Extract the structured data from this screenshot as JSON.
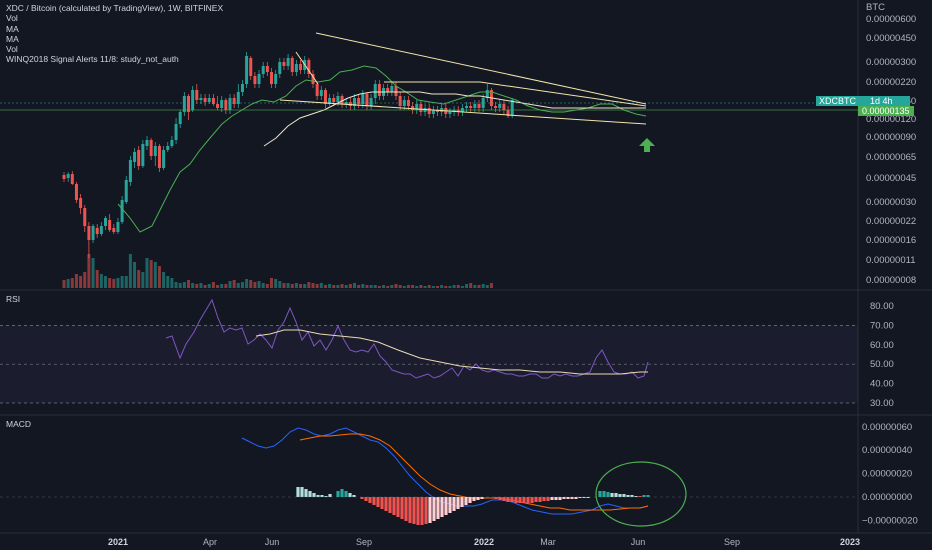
{
  "legend": {
    "title": "XDC / Bitcoin (calculated by TradingView), 1W, BITFINEX",
    "lines": [
      "Vol",
      "MA",
      "MA",
      "Vol",
      "WINQ2018 Signal Alerts 11/8: study_not_auth"
    ]
  },
  "price_axis": {
    "currency": "BTC",
    "ticks": [
      "0.00000600",
      "0.00000450",
      "0.00000300",
      "0.00000220",
      "0.00000160",
      "0.00000120",
      "0.00000090",
      "0.00000065",
      "0.00000045",
      "0.00000030",
      "0.00000022",
      "0.00000016",
      "0.00000011",
      "0.00000008"
    ]
  },
  "price_tags": {
    "symbol": "XDCBTC",
    "countdown": "1d 4h",
    "last": "0.00000135"
  },
  "rsi": {
    "title": "RSI",
    "ticks": [
      "80.00",
      "70.00",
      "60.00",
      "50.00",
      "40.00",
      "30.00"
    ],
    "band_upper": 70,
    "band_lower": 30,
    "mid": 50
  },
  "macd": {
    "title": "MACD",
    "ticks": [
      "0.00000060",
      "0.00000040",
      "0.00000020",
      "0.00000000",
      "−0.00000020"
    ]
  },
  "time_axis": [
    {
      "label": "2021",
      "bold": true
    },
    {
      "label": "Apr",
      "bold": false
    },
    {
      "label": "Jun",
      "bold": false
    },
    {
      "label": "Sep",
      "bold": false
    },
    {
      "label": "2022",
      "bold": true
    },
    {
      "label": "Mar",
      "bold": false
    },
    {
      "label": "Jun",
      "bold": false
    },
    {
      "label": "Sep",
      "bold": false
    },
    {
      "label": "2023",
      "bold": true
    }
  ],
  "colors": {
    "background": "#131722",
    "up": "#26a69a",
    "down": "#ef5350",
    "ma_fast": "#4caf50",
    "ma_slow": "#f0e6c8",
    "trendline": "#f3e5ab",
    "rsi_line": "#7e57c2",
    "rsi_ma": "#e8dcb0",
    "macd_line": "#2962ff",
    "signal_line": "#ff6d00",
    "highlight_ellipse": "#4caf50",
    "arrow": "#4caf50"
  },
  "chart_data": {
    "type": "candlestick",
    "symbol": "XDC / Bitcoin",
    "interval": "1W",
    "exchange": "BITFINEX",
    "y_scale": "log",
    "ylim": [
      8e-08,
      6e-06
    ],
    "x": [
      "2021-01",
      "2021-04",
      "2021-06",
      "2021-09",
      "2022-01",
      "2022-03",
      "2022-06",
      "2022-09",
      "2023-01"
    ],
    "close_approx": [
      4e-07,
      1.9e-06,
      1.7e-06,
      2.8e-06,
      1.8e-06,
      1.3e-06,
      1.35e-06
    ],
    "last_price": 1.35e-06,
    "rsi_range": [
      30,
      80
    ],
    "rsi_recent_approx": [
      72,
      80,
      60,
      47,
      45,
      42,
      56,
      43,
      51
    ],
    "macd_range": [
      -2e-07,
      6e-07
    ],
    "macd_recent_approx": [
      4.8e-07,
      5.5e-07,
      5e-07,
      3e-07,
      -5e-08,
      -1.8e-07,
      -1.2e-07,
      -5e-08
    ]
  }
}
